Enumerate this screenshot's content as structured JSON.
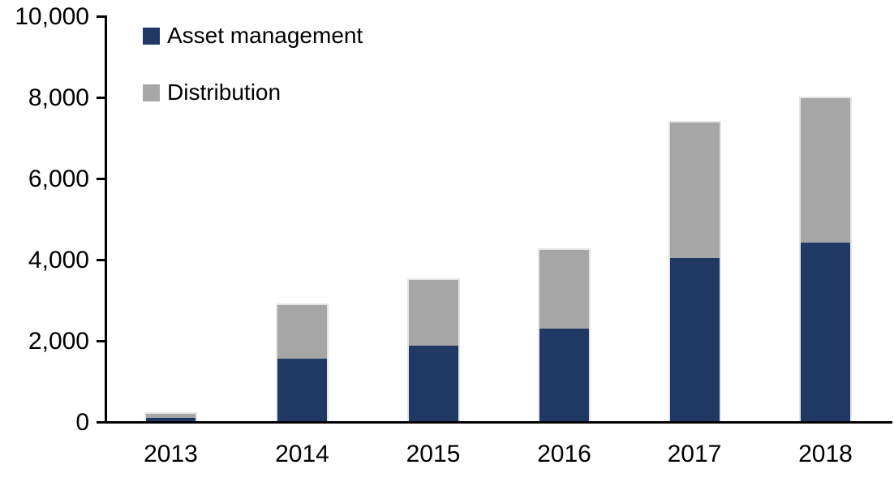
{
  "chart_data": {
    "type": "bar",
    "stacked": true,
    "title": "",
    "xlabel": "",
    "ylabel": "",
    "categories": [
      "2013",
      "2014",
      "2015",
      "2016",
      "2017",
      "2018"
    ],
    "series": [
      {
        "name": "Asset management",
        "color": "#1F3864",
        "values": [
          110,
          1580,
          1900,
          2320,
          4050,
          4430
        ]
      },
      {
        "name": "Distribution",
        "color": "#A6A6A6",
        "values": [
          100,
          1310,
          1610,
          1930,
          3340,
          3570
        ]
      }
    ],
    "totals": [
      210,
      2890,
      3510,
      4250,
      7390,
      8000
    ],
    "ylim": [
      0,
      10000
    ],
    "ytick_interval": 2000,
    "yticks": [
      {
        "value": 0,
        "label": "0"
      },
      {
        "value": 2000,
        "label": "2,000"
      },
      {
        "value": 4000,
        "label": "4,000"
      },
      {
        "value": 6000,
        "label": "6,000"
      },
      {
        "value": 8000,
        "label": "8,000"
      },
      {
        "value": 10000,
        "label": "10,000"
      }
    ],
    "grid": false,
    "legend_position": "top-left-inside"
  },
  "style": {
    "axis_color": "#000000",
    "bar_outline_color": "#E5E5E5",
    "background": "#FFFFFF"
  }
}
